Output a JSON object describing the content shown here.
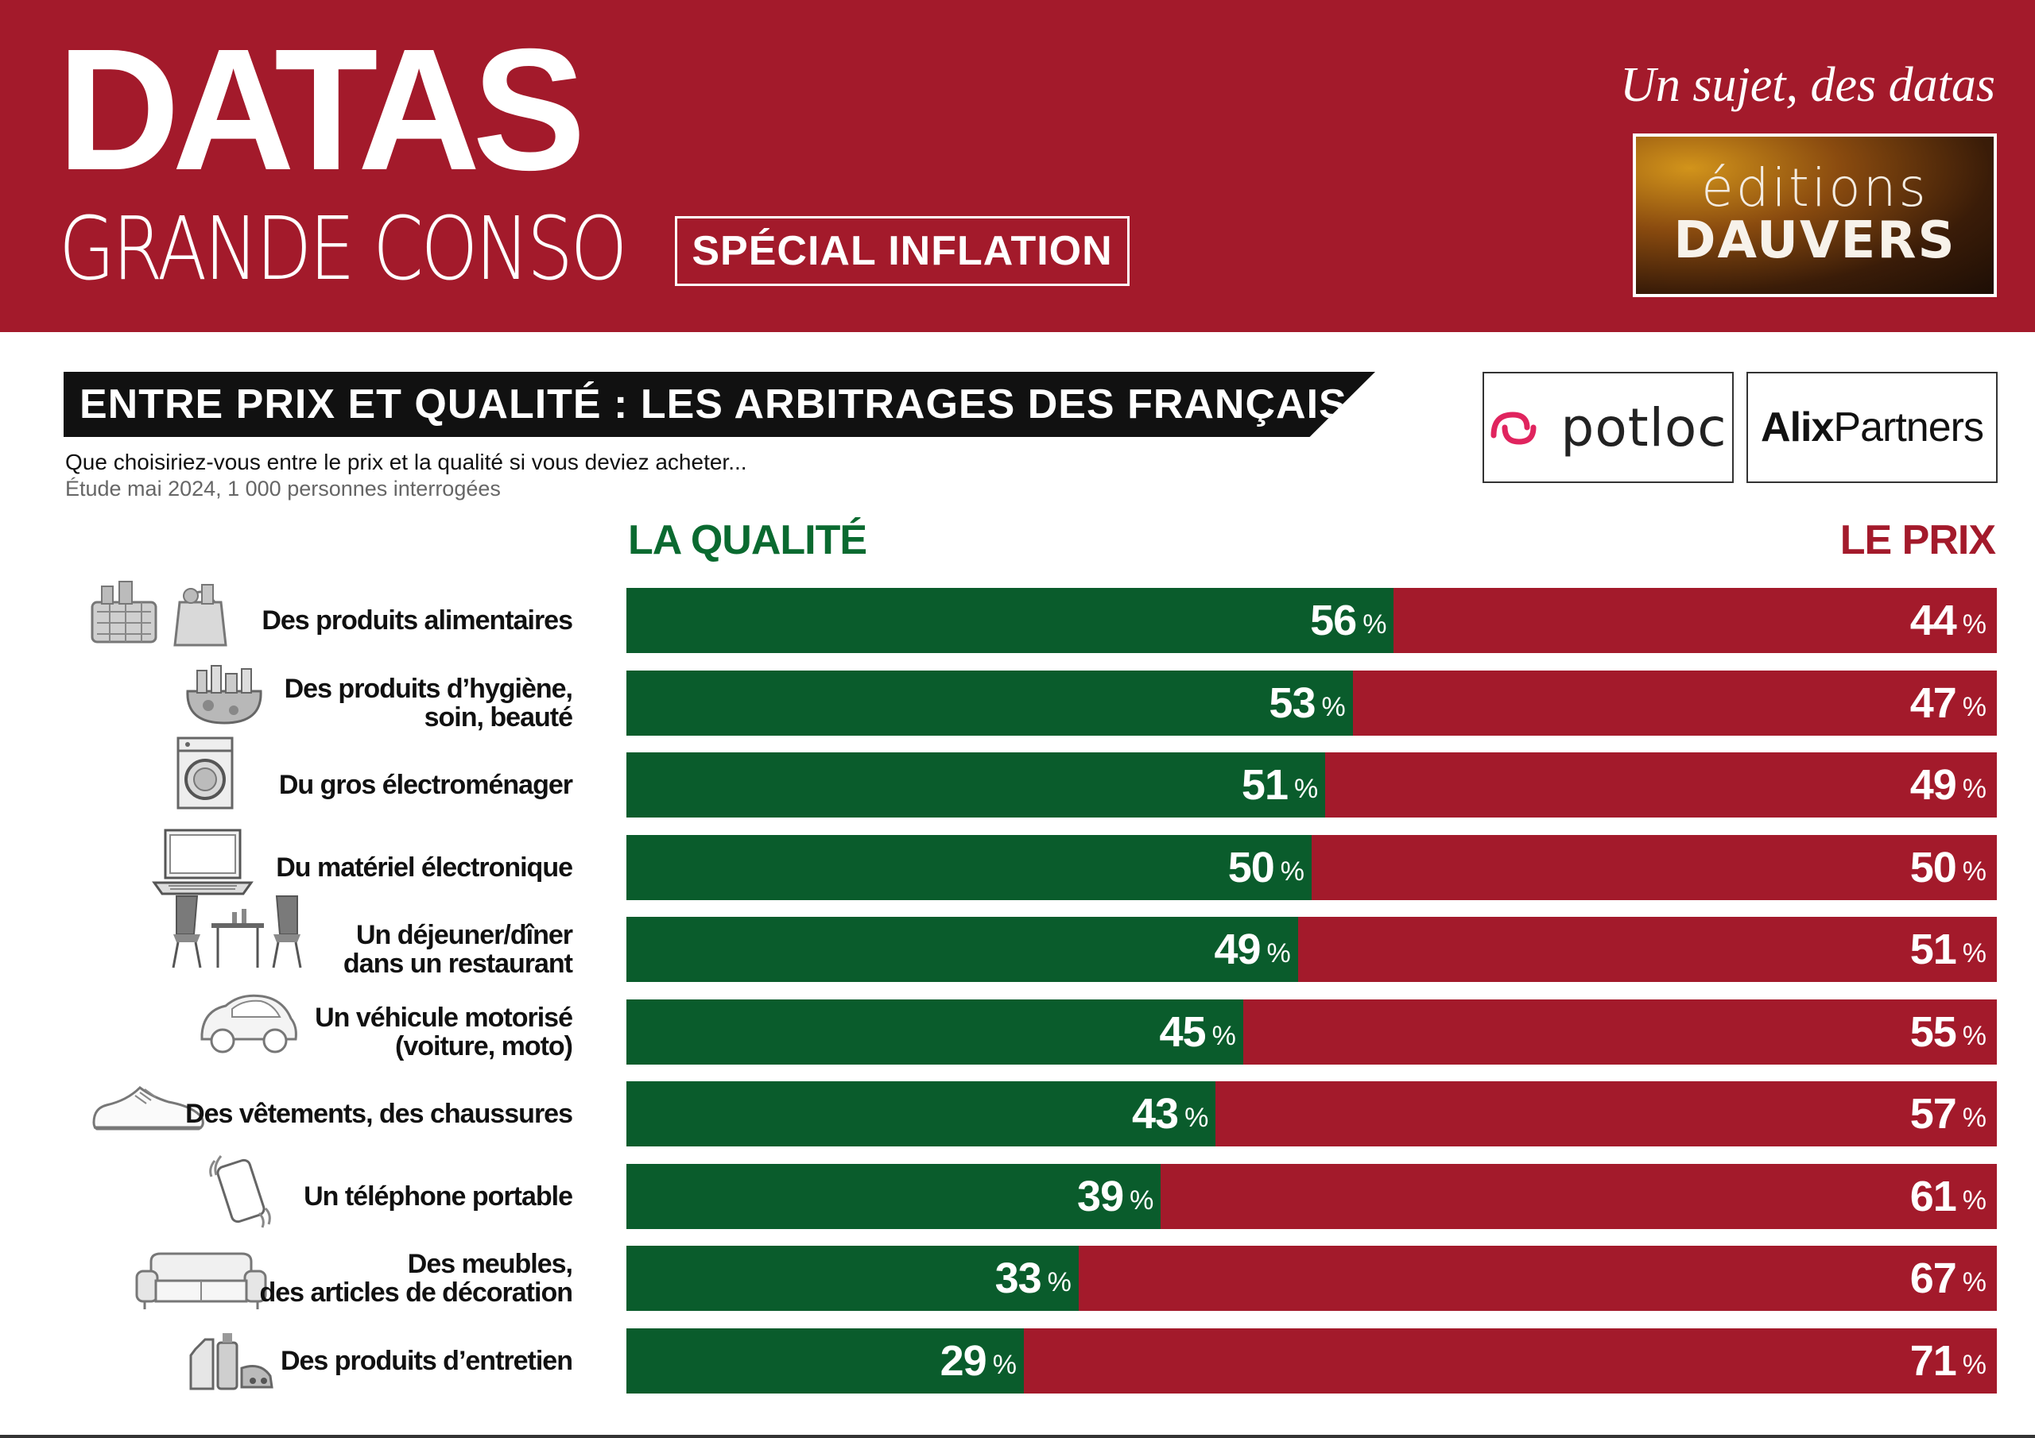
{
  "header": {
    "brand_big": "DATAS",
    "brand_sub": "GRANDE CONSO",
    "special": "SPÉCIAL INFLATION",
    "tagline": "Un sujet, des datas",
    "publisher_line1": "éditions",
    "publisher_line2": "DAUVERS"
  },
  "title_strip": "ENTRE PRIX ET QUALITÉ : LES ARBITRAGES DES FRANÇAIS",
  "question": "Que choisiriez-vous entre le prix et la qualité si vous deviez acheter...",
  "study": "Étude mai 2024, 1 000 personnes interrogées",
  "partners": {
    "potloc": "potloc",
    "alix_bold": "Alix",
    "alix_light": "Partners"
  },
  "colors": {
    "quality": "#0a5c2c",
    "price": "#a31a2b",
    "brand_red": "#a31a2b"
  },
  "chart_data": {
    "type": "bar",
    "orientation": "horizontal-stacked-100",
    "series": [
      {
        "name": "LA QUALITÉ",
        "values": [
          56,
          53,
          51,
          50,
          49,
          45,
          43,
          39,
          33,
          29
        ]
      },
      {
        "name": "LE PRIX",
        "values": [
          44,
          47,
          49,
          50,
          51,
          55,
          57,
          61,
          67,
          71
        ]
      }
    ],
    "categories": [
      [
        "Des produits alimentaires"
      ],
      [
        "Des produits d’hygiène,",
        "soin, beauté"
      ],
      [
        "Du gros électroménager"
      ],
      [
        "Du matériel électronique"
      ],
      [
        "Un déjeuner/dîner",
        "dans un restaurant"
      ],
      [
        "Un véhicule motorisé",
        "(voiture, moto)"
      ],
      [
        "Des vêtements, des chaussures"
      ],
      [
        "Un téléphone portable"
      ],
      [
        "Des meubles,",
        "des articles de décoration"
      ],
      [
        "Des produits d’entretien"
      ]
    ],
    "icons": [
      "grocery-basket-icon",
      "cosmetics-bag-icon",
      "washing-machine-icon",
      "laptop-icon",
      "restaurant-table-icon",
      "car-icon",
      "sneaker-icon",
      "smartphone-icon",
      "sofa-icon",
      "cleaning-products-icon"
    ],
    "unit": "%",
    "xlim": [
      0,
      100
    ]
  }
}
